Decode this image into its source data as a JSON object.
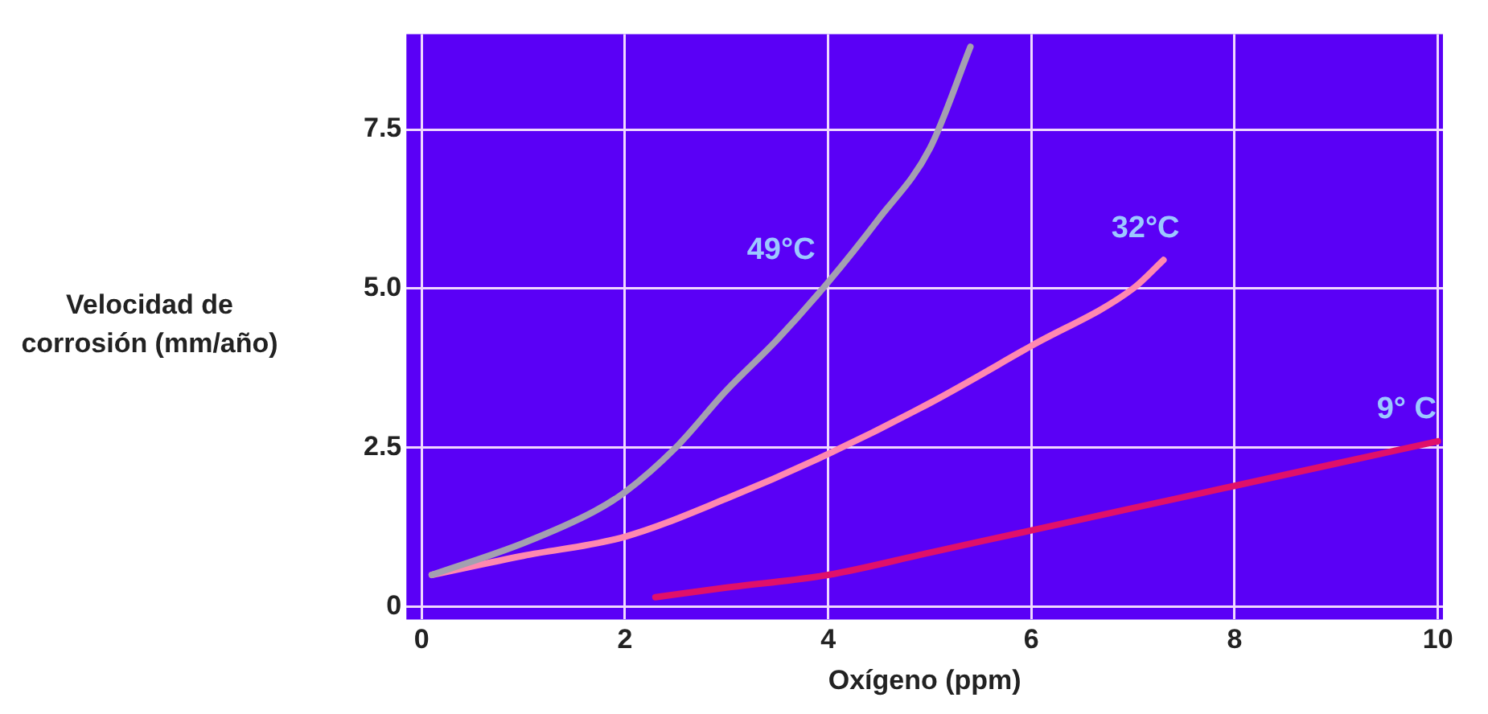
{
  "chart_data": {
    "type": "line",
    "xlabel": "Oxígeno (ppm)",
    "ylabel": "Velocidad de corrosión (mm/año)",
    "xlim": [
      -0.15,
      10.05
    ],
    "ylim": [
      -0.2,
      9
    ],
    "xticks": [
      0,
      2,
      4,
      6,
      8,
      10
    ],
    "yticks": [
      0,
      2.5,
      {
        "value": 5,
        "label": "5.0"
      },
      7.5
    ],
    "grid": true,
    "legend": false,
    "marker": "none",
    "line_style": "solid",
    "series": [
      {
        "name": "49°C",
        "color": "#a4a0b0",
        "x": [
          0.1,
          1,
          1.7,
          2,
          2.5,
          3,
          3.5,
          4,
          4.5,
          5,
          5.4
        ],
        "values": [
          0.5,
          1.0,
          1.5,
          1.8,
          2.5,
          3.4,
          4.2,
          5.1,
          6.1,
          7.2,
          8.8
        ]
      },
      {
        "name": "32°C",
        "color": "#ff88b0",
        "x": [
          0.1,
          1,
          2,
          3,
          4,
          5,
          6,
          7,
          7.3
        ],
        "values": [
          0.5,
          0.8,
          1.1,
          1.7,
          2.4,
          3.2,
          4.1,
          5.0,
          5.45
        ]
      },
      {
        "name": "9° C",
        "color": "#e0106a",
        "x": [
          2.3,
          3,
          4,
          5,
          6,
          7,
          8,
          9,
          10
        ],
        "values": [
          0.15,
          0.3,
          0.5,
          0.85,
          1.2,
          1.55,
          1.9,
          2.25,
          2.6
        ]
      }
    ]
  }
}
